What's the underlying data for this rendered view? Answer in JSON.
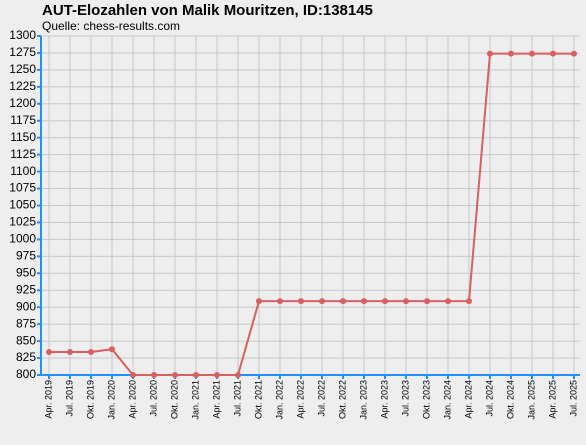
{
  "chart_data": {
    "type": "line",
    "title": "AUT-Elozahlen von Malik Mouritzen, ID:138145",
    "subtitle": "Quelle: chess-results.com",
    "categories": [
      "Apr. 2019",
      "Jul. 2019",
      "Okt. 2019",
      "Jan. 2020",
      "Apr. 2020",
      "Jul. 2020",
      "Okt. 2020",
      "Jan. 2021",
      "Apr. 2021",
      "Jul. 2021",
      "Okt. 2021",
      "Jan. 2022",
      "Apr. 2022",
      "Jul. 2022",
      "Okt. 2022",
      "Jan. 2023",
      "Apr. 2023",
      "Jul. 2023",
      "Okt. 2023",
      "Jan. 2024",
      "Apr. 2024",
      "Jul. 2024",
      "Okt. 2024",
      "Jan. 2025",
      "Apr. 2025",
      "Jul. 2025"
    ],
    "values": [
      834,
      834,
      834,
      838,
      800,
      800,
      800,
      800,
      800,
      800,
      909,
      909,
      909,
      909,
      909,
      909,
      909,
      909,
      909,
      909,
      909,
      1274,
      1274,
      1274,
      1274,
      1274
    ],
    "color": "#d96060",
    "ylim": [
      800,
      1300
    ],
    "yticks": [
      800,
      825,
      850,
      875,
      900,
      925,
      950,
      975,
      1000,
      1025,
      1050,
      1075,
      1100,
      1125,
      1150,
      1175,
      1200,
      1225,
      1250,
      1275,
      1300
    ],
    "grid": true
  }
}
